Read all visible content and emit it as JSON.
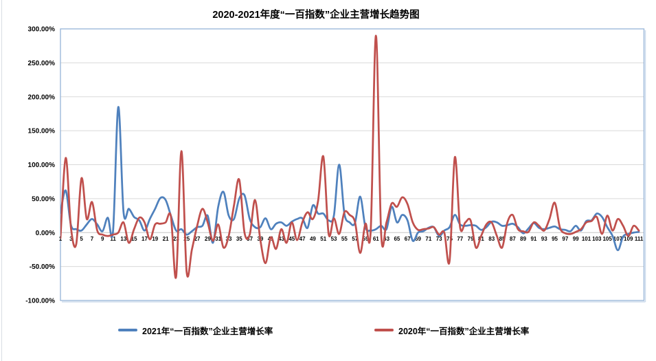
{
  "title": "2020-2021年度“一百指数”企业主营增长趋势图",
  "colors": {
    "series_2021": "#4F81BD",
    "series_2020": "#C0504D",
    "gridline": "#D9D9D9",
    "zero_axis": "#C6C6C6",
    "plot_border": "#95B3D7",
    "plot_shadow": "#CBDAEC",
    "text": "#000000"
  },
  "chart_data": {
    "type": "line",
    "smooth": true,
    "title": "2020-2021年度“一百指数”企业主营增长趋势图",
    "xlabel": "",
    "ylabel": "",
    "ylim": [
      -100,
      300
    ],
    "ytick_step": 50,
    "y_tick_labels": [
      "300.00%",
      "250.00%",
      "200.00%",
      "150.00%",
      "100.00%",
      "50.00%",
      "0.00%",
      "-50.00%",
      "-100.00%"
    ],
    "x_min": 1,
    "x_max": 111,
    "x_tick_labels": [
      "1",
      "3",
      "5",
      "7",
      "9",
      "11",
      "13",
      "15",
      "17",
      "19",
      "21",
      "23",
      "25",
      "27",
      "29",
      "31",
      "33",
      "35",
      "37",
      "39",
      "41",
      "43",
      "45",
      "47",
      "49",
      "51",
      "53",
      "55",
      "57",
      "59",
      "61",
      "63",
      "65",
      "67",
      "69",
      "71",
      "73",
      "75",
      "77",
      "79",
      "81",
      "83",
      "85",
      "87",
      "89",
      "91",
      "93",
      "95",
      "97",
      "99",
      "101",
      "103",
      "105",
      "107",
      "109",
      "111"
    ],
    "grid": true,
    "legend_position": "bottom",
    "series": [
      {
        "name": "2021年“一百指数”企业主营增长率",
        "color": "#4F81BD",
        "unit": "%",
        "values": [
          29,
          62,
          11,
          5,
          3,
          12,
          20,
          12,
          2,
          22,
          2,
          185,
          30,
          35,
          23,
          18,
          3,
          20,
          35,
          51,
          48,
          25,
          3,
          5,
          -3,
          2,
          8,
          10,
          25,
          -15,
          38,
          60,
          25,
          20,
          50,
          55,
          20,
          8,
          8,
          21,
          5,
          13,
          15,
          10,
          16,
          20,
          21,
          7,
          40,
          28,
          28,
          18,
          25,
          100,
          28,
          15,
          14,
          53,
          8,
          3,
          5,
          10,
          5,
          38,
          15,
          26,
          18,
          -12,
          0,
          2,
          7,
          8,
          -5,
          3,
          8,
          26,
          12,
          10,
          11,
          10,
          4,
          8,
          16,
          15,
          10,
          11,
          13,
          8,
          -1,
          6,
          14,
          7,
          5,
          7,
          9,
          5,
          4,
          2,
          10,
          3,
          17,
          18,
          28,
          23,
          8,
          -5,
          -26,
          -6,
          -2,
          0,
          1
        ]
      },
      {
        "name": "2020年“一百指数”企业主营增长率",
        "color": "#C0504D",
        "unit": "%",
        "values": [
          -8,
          110,
          7,
          -17,
          80,
          20,
          45,
          3,
          -3,
          -5,
          -3,
          0,
          15,
          -15,
          5,
          22,
          15,
          -10,
          12,
          13,
          15,
          24,
          -65,
          120,
          -58,
          -25,
          10,
          35,
          15,
          -12,
          12,
          -22,
          -5,
          40,
          78,
          0,
          -3,
          48,
          -10,
          -45,
          -7,
          -24,
          5,
          -15,
          15,
          -11,
          15,
          30,
          20,
          47,
          112,
          -2,
          21,
          -2,
          30,
          26,
          16,
          -30,
          13,
          2,
          290,
          -3,
          15,
          43,
          38,
          52,
          42,
          15,
          4,
          5,
          6,
          8,
          -3,
          0,
          -42,
          111,
          8,
          15,
          18,
          -22,
          -5,
          12,
          15,
          -5,
          -22,
          15,
          26,
          5,
          2,
          1,
          15,
          10,
          3,
          20,
          44,
          7,
          -1,
          -2,
          1,
          5,
          15,
          17,
          23,
          -2,
          25,
          3,
          20,
          10,
          -5,
          10,
          3
        ]
      }
    ]
  },
  "legend": {
    "item_2021": "2021年“一百指数”企业主营增长率",
    "item_2020": "2020年“一百指数”企业主营增长率"
  }
}
